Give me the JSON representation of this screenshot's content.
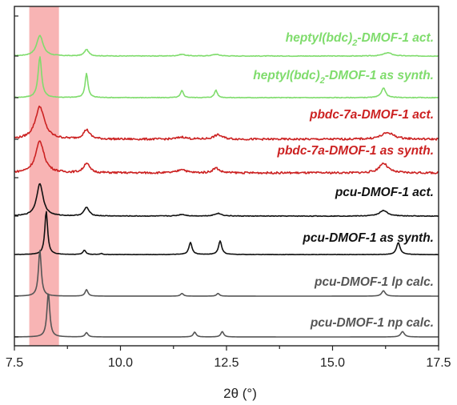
{
  "chart_data": {
    "type": "line",
    "title": "",
    "xlabel": "2θ (°)",
    "ylabel": "",
    "xlim": [
      7.5,
      17.5
    ],
    "xticks": [
      7.5,
      10.0,
      12.5,
      15.0,
      17.5
    ],
    "xtick_labels": [
      "7.5",
      "10.0",
      "12.5",
      "15.0",
      "17.5"
    ],
    "y_ticks_labeled": false,
    "grid": false,
    "legend": "none",
    "highlight_band": {
      "x_range": [
        7.85,
        8.55
      ],
      "color": "#f8b4b4"
    },
    "series": [
      {
        "name": "heptyl(bdc)2-DMOF-1 act.",
        "name_main": "heptyl(bdc)",
        "name_sub": "2",
        "name_rest": "-DMOF-1 act.",
        "color": "#7fdc6c",
        "baseline_noise": 0.002,
        "peaks": [
          {
            "x": 8.1,
            "height": 0.38,
            "width": 0.09
          },
          {
            "x": 9.2,
            "height": 0.12,
            "width": 0.06
          },
          {
            "x": 11.45,
            "height": 0.03,
            "width": 0.1
          },
          {
            "x": 12.25,
            "height": 0.03,
            "width": 0.1
          },
          {
            "x": 16.3,
            "height": 0.06,
            "width": 0.12
          }
        ]
      },
      {
        "name": "heptyl(bdc)2-DMOF-1 as synth.",
        "name_main": "heptyl(bdc)",
        "name_sub": "2",
        "name_rest": "-DMOF-1 as synth.",
        "color": "#7fdc6c",
        "baseline_noise": 0.002,
        "peaks": [
          {
            "x": 8.1,
            "height": 0.75,
            "width": 0.05
          },
          {
            "x": 9.2,
            "height": 0.45,
            "width": 0.04
          },
          {
            "x": 11.45,
            "height": 0.13,
            "width": 0.04
          },
          {
            "x": 12.25,
            "height": 0.14,
            "width": 0.04
          },
          {
            "x": 16.2,
            "height": 0.18,
            "width": 0.06
          }
        ]
      },
      {
        "name": "pbdc-7a-DMOF-1 act.",
        "name_main": "pbdc-7a-DMOF-1 act.",
        "name_sub": "",
        "name_rest": "",
        "color": "#cc2222",
        "baseline_noise": 0.006,
        "peaks": [
          {
            "x": 8.1,
            "height": 0.6,
            "width": 0.13
          },
          {
            "x": 9.2,
            "height": 0.17,
            "width": 0.09
          },
          {
            "x": 11.45,
            "height": 0.04,
            "width": 0.12
          },
          {
            "x": 12.3,
            "height": 0.08,
            "width": 0.12
          },
          {
            "x": 16.3,
            "height": 0.12,
            "width": 0.18
          }
        ]
      },
      {
        "name": "pbdc-7a-DMOF-1 as synth.",
        "name_main": "pbdc-7a-DMOF-1 as synth.",
        "name_sub": "",
        "name_rest": "",
        "color": "#cc2222",
        "baseline_noise": 0.006,
        "peaks": [
          {
            "x": 8.1,
            "height": 0.58,
            "width": 0.12
          },
          {
            "x": 9.2,
            "height": 0.18,
            "width": 0.08
          },
          {
            "x": 11.45,
            "height": 0.07,
            "width": 0.1
          },
          {
            "x": 12.25,
            "height": 0.09,
            "width": 0.09
          },
          {
            "x": 16.2,
            "height": 0.18,
            "width": 0.12
          }
        ]
      },
      {
        "name": "pcu-DMOF-1 act.",
        "name_main": "pcu-DMOF-1 act.",
        "name_sub": "",
        "name_rest": "",
        "color": "#111111",
        "baseline_noise": 0.002,
        "peaks": [
          {
            "x": 8.1,
            "height": 0.6,
            "width": 0.09
          },
          {
            "x": 9.2,
            "height": 0.16,
            "width": 0.07
          },
          {
            "x": 11.45,
            "height": 0.03,
            "width": 0.1
          },
          {
            "x": 12.3,
            "height": 0.05,
            "width": 0.1
          },
          {
            "x": 16.2,
            "height": 0.1,
            "width": 0.12
          }
        ]
      },
      {
        "name": "pcu-DMOF-1 as synth.",
        "name_main": "pcu-DMOF-1 as synth.",
        "name_sub": "",
        "name_rest": "",
        "color": "#111111",
        "baseline_noise": 0.001,
        "peaks": [
          {
            "x": 8.25,
            "height": 0.8,
            "width": 0.04
          },
          {
            "x": 9.15,
            "height": 0.08,
            "width": 0.04
          },
          {
            "x": 9.55,
            "height": 0.02,
            "width": 0.03
          },
          {
            "x": 11.65,
            "height": 0.22,
            "width": 0.045
          },
          {
            "x": 12.35,
            "height": 0.25,
            "width": 0.045
          },
          {
            "x": 16.55,
            "height": 0.22,
            "width": 0.05
          }
        ]
      },
      {
        "name": "pcu-DMOF-1 lp calc.",
        "name_main": "pcu-DMOF-1 lp calc.",
        "name_sub": "",
        "name_rest": "",
        "color": "#555555",
        "baseline_noise": 0.0,
        "peaks": [
          {
            "x": 8.1,
            "height": 0.85,
            "width": 0.04
          },
          {
            "x": 9.2,
            "height": 0.12,
            "width": 0.04
          },
          {
            "x": 11.45,
            "height": 0.05,
            "width": 0.04
          },
          {
            "x": 12.3,
            "height": 0.05,
            "width": 0.04
          },
          {
            "x": 16.2,
            "height": 0.1,
            "width": 0.05
          }
        ]
      },
      {
        "name": "pcu-DMOF-1 np calc.",
        "name_main": "pcu-DMOF-1 np calc.",
        "name_sub": "",
        "name_rest": "",
        "color": "#555555",
        "baseline_noise": 0.0,
        "peaks": [
          {
            "x": 8.3,
            "height": 0.82,
            "width": 0.04
          },
          {
            "x": 9.2,
            "height": 0.08,
            "width": 0.04
          },
          {
            "x": 11.75,
            "height": 0.09,
            "width": 0.04
          },
          {
            "x": 12.4,
            "height": 0.1,
            "width": 0.04
          },
          {
            "x": 16.65,
            "height": 0.1,
            "width": 0.05
          }
        ]
      }
    ]
  }
}
